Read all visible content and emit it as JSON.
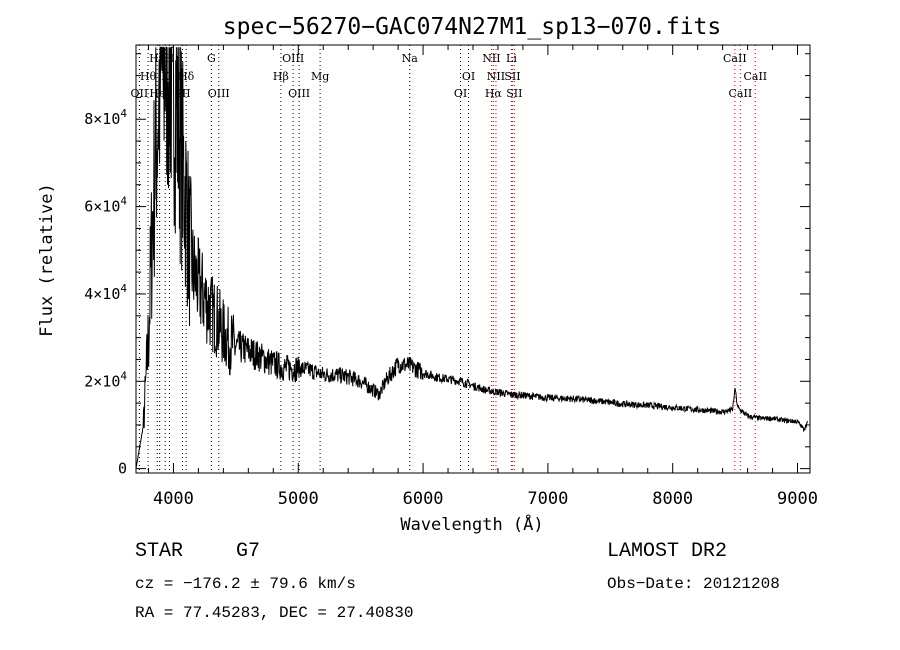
{
  "chart_data": {
    "type": "line",
    "title": "spec−56270−GAC074N27M1_sp13−070.fits",
    "xlabel": "Wavelength (Å)",
    "ylabel": "Flux (relative)",
    "xlim": [
      3700,
      9100
    ],
    "ylim": [
      -1000,
      97000
    ],
    "x_ticks": [
      {
        "value": 4000,
        "label": "4000"
      },
      {
        "value": 5000,
        "label": "5000"
      },
      {
        "value": 6000,
        "label": "6000"
      },
      {
        "value": 7000,
        "label": "7000"
      },
      {
        "value": 8000,
        "label": "8000"
      },
      {
        "value": 9000,
        "label": "9000"
      }
    ],
    "y_ticks": [
      {
        "value": 0,
        "mant": "0",
        "exp": ""
      },
      {
        "value": 20000,
        "mant": "2×10",
        "exp": "4"
      },
      {
        "value": 40000,
        "mant": "4×10",
        "exp": "4"
      },
      {
        "value": 60000,
        "mant": "6×10",
        "exp": "4"
      },
      {
        "value": 80000,
        "mant": "8×10",
        "exp": "4"
      }
    ],
    "spectrum_anchors": [
      [
        3700,
        0
      ],
      [
        3760,
        10000
      ],
      [
        3800,
        30000
      ],
      [
        3830,
        55000
      ],
      [
        3860,
        75000
      ],
      [
        3890,
        88000
      ],
      [
        3920,
        92000
      ],
      [
        3950,
        96000
      ],
      [
        3980,
        92000
      ],
      [
        4010,
        88000
      ],
      [
        4040,
        80000
      ],
      [
        4070,
        70000
      ],
      [
        4100,
        62000
      ],
      [
        4130,
        50000
      ],
      [
        4160,
        45000
      ],
      [
        4200,
        42000
      ],
      [
        4250,
        39000
      ],
      [
        4300,
        36000
      ],
      [
        4350,
        34000
      ],
      [
        4400,
        31000
      ],
      [
        4450,
        29000
      ],
      [
        4500,
        28000
      ],
      [
        4600,
        27000
      ],
      [
        4700,
        25500
      ],
      [
        4800,
        24000
      ],
      [
        4900,
        23000
      ],
      [
        5000,
        23000
      ],
      [
        5100,
        22500
      ],
      [
        5200,
        21500
      ],
      [
        5300,
        21500
      ],
      [
        5400,
        21000
      ],
      [
        5500,
        20000
      ],
      [
        5600,
        18000
      ],
      [
        5650,
        17000
      ],
      [
        5700,
        20000
      ],
      [
        5800,
        24000
      ],
      [
        5900,
        23500
      ],
      [
        6000,
        22000
      ],
      [
        6100,
        21000
      ],
      [
        6200,
        20500
      ],
      [
        6300,
        20000
      ],
      [
        6400,
        19000
      ],
      [
        6500,
        18000
      ],
      [
        6600,
        17500
      ],
      [
        6700,
        17000
      ],
      [
        6800,
        16800
      ],
      [
        6900,
        16500
      ],
      [
        7000,
        16200
      ],
      [
        7200,
        16000
      ],
      [
        7400,
        15500
      ],
      [
        7600,
        14800
      ],
      [
        7800,
        14500
      ],
      [
        8000,
        14000
      ],
      [
        8200,
        13500
      ],
      [
        8400,
        13000
      ],
      [
        8480,
        13500
      ],
      [
        8500,
        18500
      ],
      [
        8520,
        14000
      ],
      [
        8600,
        12000
      ],
      [
        8700,
        11500
      ],
      [
        8800,
        11500
      ],
      [
        8900,
        11000
      ],
      [
        9000,
        10800
      ],
      [
        9050,
        9000
      ],
      [
        9080,
        10500
      ]
    ],
    "lines": [
      {
        "label": "Hγ",
        "wave": 3870,
        "row": 1,
        "color": "#000000"
      },
      {
        "label": "Hθ",
        "wave": 3797,
        "row": 2,
        "color": "#000000"
      },
      {
        "label": "OII",
        "wave": 3727,
        "row": 3,
        "color": "#000000"
      },
      {
        "label": "K",
        "wave": 3934,
        "row": 2,
        "color": "#000000"
      },
      {
        "label": "H",
        "wave": 3968,
        "row": 1,
        "color": "#000000"
      },
      {
        "label": "HeI",
        "wave": 3889,
        "row": 3,
        "color": "#000000"
      },
      {
        "label": "SII",
        "wave": 4072,
        "row": 3,
        "color": "#000000"
      },
      {
        "label": "Hδ",
        "wave": 4102,
        "row": 2,
        "color": "#000000"
      },
      {
        "label": "G",
        "wave": 4304,
        "row": 1,
        "color": "#000000"
      },
      {
        "label": "OIII",
        "wave": 4363,
        "row": 3,
        "color": "#000000"
      },
      {
        "label": "OIII",
        "wave": 4959,
        "row": 1,
        "color": "#000000"
      },
      {
        "label": "Hβ",
        "wave": 4861,
        "row": 2,
        "color": "#000000"
      },
      {
        "label": "OIII",
        "wave": 5007,
        "row": 3,
        "color": "#000000"
      },
      {
        "label": "Mg",
        "wave": 5175,
        "row": 2,
        "color": "#000000"
      },
      {
        "label": "Na",
        "wave": 5893,
        "row": 1,
        "color": "#000000"
      },
      {
        "label": "OI",
        "wave": 6364,
        "row": 2,
        "color": "#000000"
      },
      {
        "label": "OI",
        "wave": 6300,
        "row": 3,
        "color": "#000000"
      },
      {
        "label": "NII",
        "wave": 6548,
        "row": 1,
        "color": "#cc0000"
      },
      {
        "label": "NII",
        "wave": 6584,
        "row": 2,
        "color": "#cc0000"
      },
      {
        "label": "Hα",
        "wave": 6563,
        "row": 3,
        "color": "#cc0000"
      },
      {
        "label": "Li",
        "wave": 6708,
        "row": 1,
        "color": "#cc0000"
      },
      {
        "label": "SII",
        "wave": 6716,
        "row": 2,
        "color": "#cc0000"
      },
      {
        "label": "SII",
        "wave": 6731,
        "row": 3,
        "color": "#cc0000"
      },
      {
        "label": "CaII",
        "wave": 8498,
        "row": 1,
        "color": "#cc0000"
      },
      {
        "label": "CaII",
        "wave": 8662,
        "row": 2,
        "color": "#cc0000"
      },
      {
        "label": "CaII",
        "wave": 8542,
        "row": 3,
        "color": "#cc0000"
      }
    ]
  },
  "info": {
    "class": "STAR",
    "subclass": "G7",
    "cz": "cz = −176.2 ± 79.6 km/s",
    "radec": "RA =  77.45283, DEC =  27.40830",
    "survey": "LAMOST DR2",
    "obsdate": "Obs−Date: 20121208"
  }
}
